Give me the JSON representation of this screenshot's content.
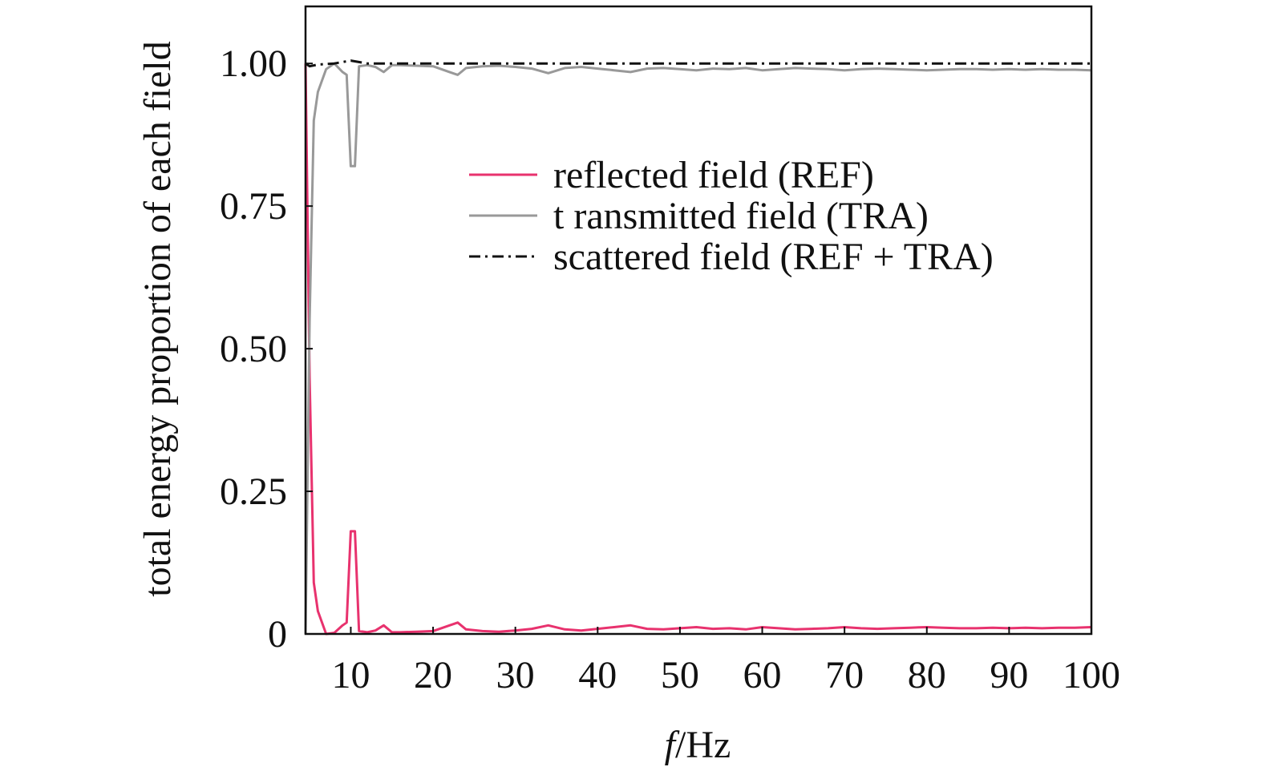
{
  "chart_data": {
    "type": "line",
    "xlabel_italic": "f",
    "xlabel_rest": "/Hz",
    "ylabel": "total energy proportion of each field",
    "xlim": [
      4.5,
      100
    ],
    "ylim": [
      0,
      1.1
    ],
    "xticks": [
      10,
      20,
      30,
      40,
      50,
      60,
      70,
      80,
      90,
      100
    ],
    "yticks": [
      0,
      0.25,
      0.5,
      0.75,
      1.0
    ],
    "ytick_labels": [
      "0",
      "0.25",
      "0.50",
      "0.75",
      "1.00"
    ],
    "legend_position": "upper-right",
    "series": [
      {
        "name": "reflected field (REF)",
        "color": "#e8326e",
        "dash": "solid",
        "x": [
          4.5,
          5,
          5.5,
          6,
          7,
          8,
          9,
          9.5,
          10,
          10.5,
          11,
          12,
          13,
          14,
          15,
          16,
          18,
          20,
          22,
          23,
          24,
          26,
          28,
          30,
          32,
          34,
          36,
          38,
          40,
          42,
          44,
          46,
          48,
          50,
          52,
          54,
          56,
          58,
          60,
          62,
          64,
          66,
          68,
          70,
          72,
          74,
          76,
          78,
          80,
          82,
          84,
          86,
          88,
          90,
          92,
          94,
          96,
          98,
          100
        ],
        "y": [
          1.0,
          0.45,
          0.09,
          0.04,
          0.0,
          0.002,
          0.015,
          0.02,
          0.18,
          0.18,
          0.005,
          0.003,
          0.006,
          0.015,
          0.003,
          0.003,
          0.004,
          0.005,
          0.015,
          0.02,
          0.008,
          0.005,
          0.004,
          0.006,
          0.009,
          0.015,
          0.008,
          0.006,
          0.009,
          0.012,
          0.015,
          0.009,
          0.008,
          0.01,
          0.012,
          0.009,
          0.01,
          0.008,
          0.012,
          0.01,
          0.008,
          0.009,
          0.01,
          0.012,
          0.01,
          0.009,
          0.01,
          0.011,
          0.012,
          0.011,
          0.01,
          0.01,
          0.011,
          0.01,
          0.011,
          0.01,
          0.011,
          0.011,
          0.012
        ]
      },
      {
        "name": "t ransmitted field (TRA)",
        "color": "#999999",
        "dash": "solid",
        "x": [
          4.5,
          5,
          5.5,
          6,
          7,
          8,
          9,
          9.5,
          10,
          10.5,
          11,
          12,
          13,
          14,
          15,
          16,
          18,
          20,
          22,
          23,
          24,
          26,
          28,
          30,
          32,
          34,
          36,
          38,
          40,
          42,
          44,
          46,
          48,
          50,
          52,
          54,
          56,
          58,
          60,
          62,
          64,
          66,
          68,
          70,
          72,
          74,
          76,
          78,
          80,
          82,
          84,
          86,
          88,
          90,
          92,
          94,
          96,
          98,
          100
        ],
        "y": [
          0.0,
          0.55,
          0.9,
          0.95,
          0.99,
          1.0,
          0.985,
          0.98,
          0.82,
          0.82,
          0.995,
          0.997,
          0.994,
          0.985,
          0.997,
          0.997,
          0.996,
          0.995,
          0.985,
          0.98,
          0.992,
          0.995,
          0.996,
          0.994,
          0.991,
          0.983,
          0.992,
          0.994,
          0.991,
          0.988,
          0.985,
          0.991,
          0.992,
          0.99,
          0.988,
          0.991,
          0.99,
          0.992,
          0.988,
          0.99,
          0.992,
          0.991,
          0.99,
          0.988,
          0.99,
          0.991,
          0.99,
          0.989,
          0.988,
          0.989,
          0.99,
          0.99,
          0.989,
          0.99,
          0.989,
          0.99,
          0.989,
          0.989,
          0.988
        ]
      },
      {
        "name": "scattered field (REF + TRA)",
        "color": "#111111",
        "dash": "dashdot",
        "x": [
          4.5,
          5,
          6,
          8,
          10,
          12,
          15,
          20,
          25,
          30,
          40,
          50,
          60,
          70,
          80,
          90,
          100
        ],
        "y": [
          1.0,
          0.995,
          0.998,
          1.0,
          1.005,
          1.0,
          1.0,
          1.0,
          1.0,
          1.0,
          1.0,
          1.0,
          1.0,
          1.0,
          1.0,
          1.0,
          1.0
        ]
      }
    ]
  }
}
